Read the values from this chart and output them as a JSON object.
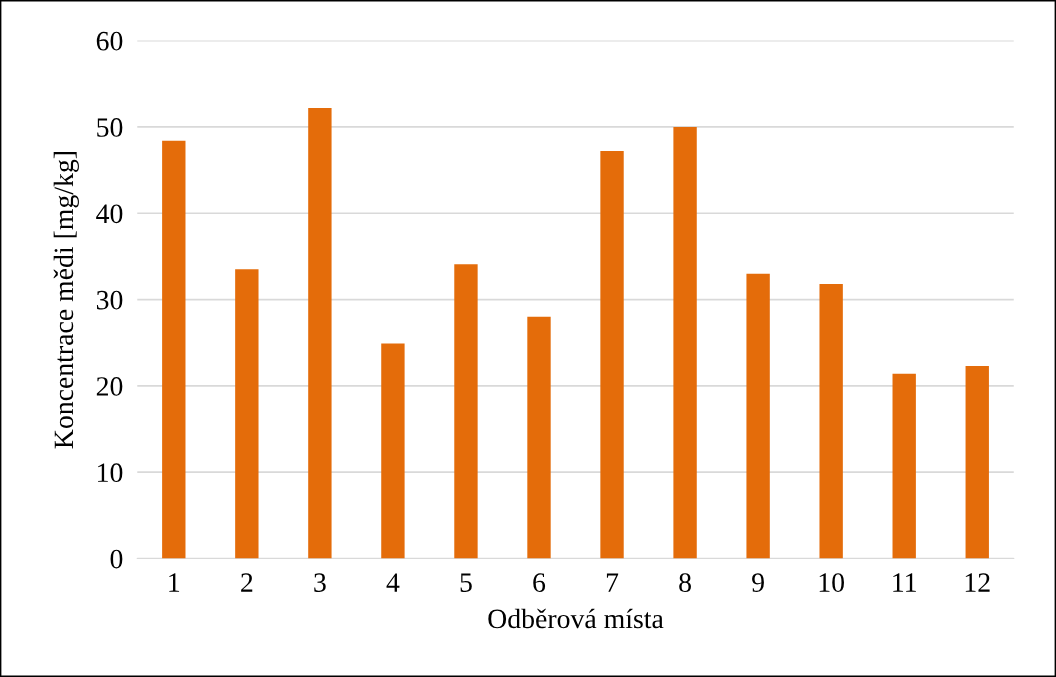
{
  "chart_data": {
    "type": "bar",
    "xlabel": "Odběrová místa",
    "ylabel": "Koncentrace mědi [mg/kg]",
    "categories": [
      "1",
      "2",
      "3",
      "4",
      "5",
      "6",
      "7",
      "8",
      "9",
      "10",
      "11",
      "12"
    ],
    "values": [
      48.4,
      33.5,
      52.2,
      24.9,
      34.1,
      28.0,
      47.2,
      50.0,
      33.0,
      31.8,
      21.4,
      22.3
    ],
    "color": "#e46c0a",
    "ylim": [
      0,
      60
    ],
    "yticks": [
      0,
      10,
      20,
      30,
      40,
      50,
      60
    ],
    "grid": "y",
    "legend": false
  }
}
